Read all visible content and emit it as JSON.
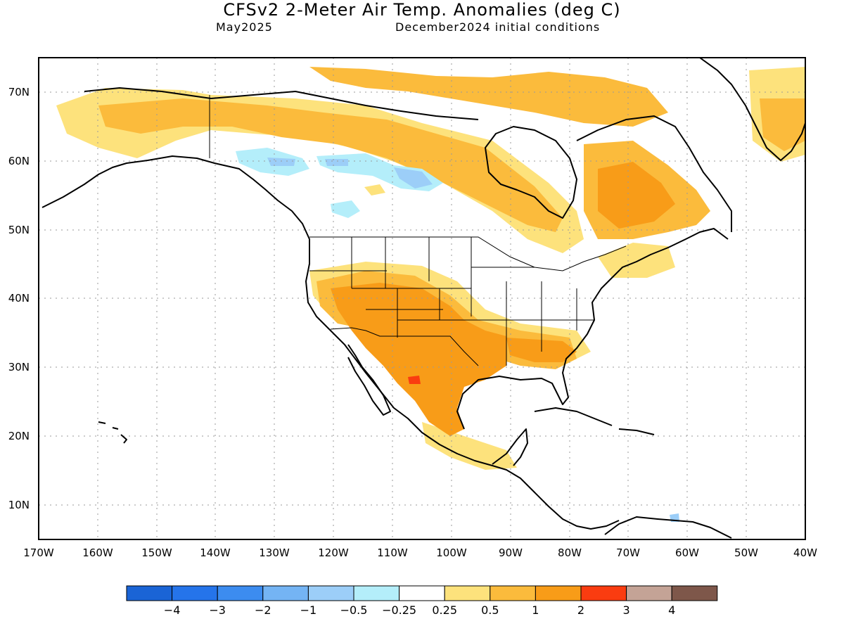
{
  "title": "CFSv2 2-Meter Air Temp. Anomalies (deg C)",
  "subtitle_left": "May2025",
  "subtitle_right": "December2024 initial conditions",
  "lat_labels": [
    "70N",
    "60N",
    "50N",
    "40N",
    "30N",
    "20N",
    "10N"
  ],
  "lon_labels": [
    "170W",
    "160W",
    "150W",
    "140W",
    "130W",
    "120W",
    "110W",
    "100W",
    "90W",
    "80W",
    "70W",
    "60W",
    "50W",
    "40W"
  ],
  "legend": {
    "colors": [
      "#1a64d6",
      "#2574ea",
      "#3c8cf0",
      "#74b4f4",
      "#9ccef8",
      "#b4eefa",
      "#ffffff",
      "#fde27c",
      "#fbbb3c",
      "#f89c18",
      "#fa3c10",
      "#c4a396",
      "#7e574a"
    ],
    "labels": [
      "−4",
      "−3",
      "−2",
      "−1",
      "−0.5",
      "−0.25",
      "0.25",
      "0.5",
      "1",
      "2",
      "3",
      "4"
    ]
  }
}
